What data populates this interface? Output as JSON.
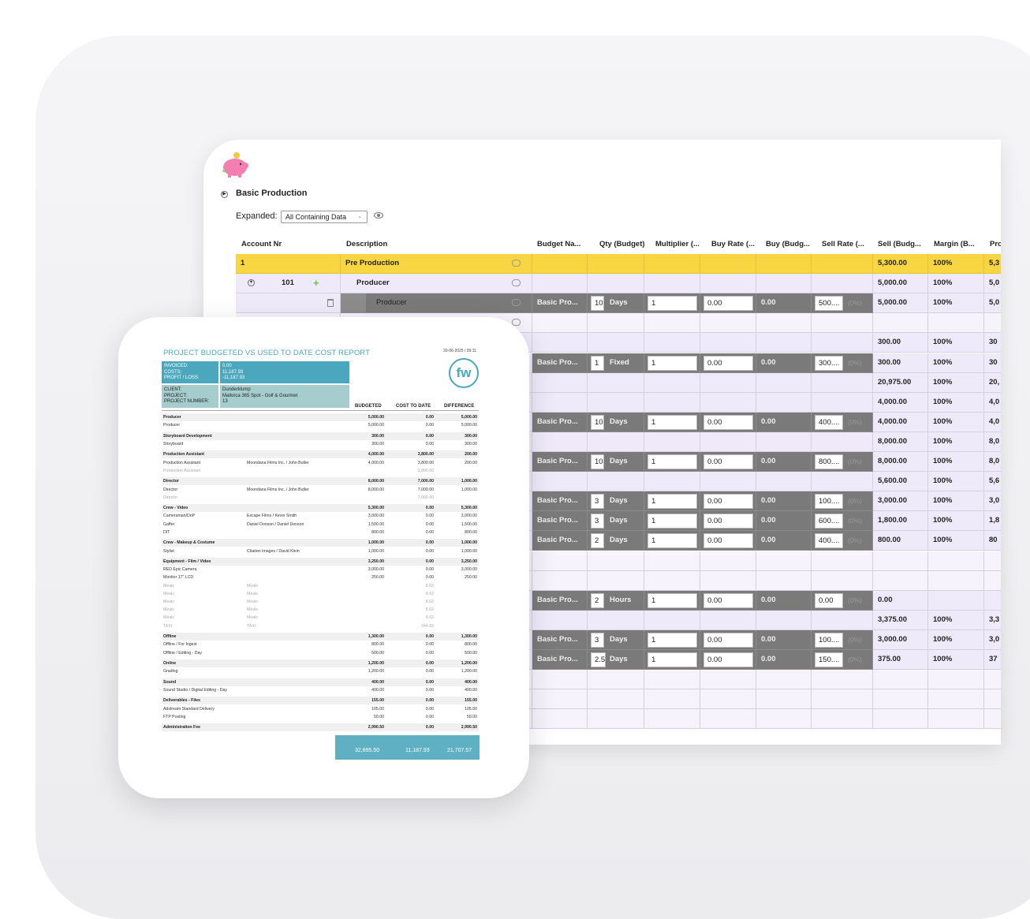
{
  "sheet": {
    "group_title": "Basic Production",
    "expanded_label": "Expanded:",
    "expanded_value": "All Containing Data",
    "columns": [
      "Account Nr",
      "Description",
      "Budget Na...",
      "Qty (Budget)",
      "Multiplier (...",
      "Buy Rate (...",
      "Buy (Budg...",
      "Sell Rate (...",
      "Sell (Budg...",
      "Margin (B...",
      "Pro"
    ],
    "rows": [
      {
        "kind": "yellow",
        "account": "1",
        "description": "Pre Production",
        "sell": "5,300.00",
        "margin": "100%",
        "pro": "5,3"
      },
      {
        "kind": "lav",
        "account": "101",
        "description": "Producer",
        "sell": "5,000.00",
        "margin": "100%",
        "pro": "5,0"
      },
      {
        "kind": "item",
        "description": "Producer",
        "budget": "Basic Pro...",
        "qty": "10",
        "unit": "Days",
        "mult": "1",
        "buy_rate": "0.00",
        "buy": "0.00",
        "sell_rate": "500....",
        "pct": "(0%)",
        "sell": "5,000.00",
        "margin": "100%",
        "pro": "5,0"
      },
      {
        "kind": "light"
      },
      {
        "kind": "lav",
        "sell": "300.00",
        "margin": "100%",
        "pro": "30"
      },
      {
        "kind": "item",
        "budget": "Basic Pro...",
        "qty": "1",
        "unit": "Fixed",
        "mult": "1",
        "buy_rate": "0.00",
        "buy": "0.00",
        "sell_rate": "300....",
        "pct": "(0%)",
        "sell": "300.00",
        "margin": "100%",
        "pro": "30"
      },
      {
        "kind": "lav",
        "sell": "20,975.00",
        "margin": "100%",
        "pro": "20,"
      },
      {
        "kind": "lav",
        "sell": "4,000.00",
        "margin": "100%",
        "pro": "4,0"
      },
      {
        "kind": "item",
        "budget": "Basic Pro...",
        "qty": "10",
        "unit": "Days",
        "mult": "1",
        "buy_rate": "0.00",
        "buy": "0.00",
        "sell_rate": "400....",
        "pct": "(0%)",
        "sell": "4,000.00",
        "margin": "100%",
        "pro": "4,0"
      },
      {
        "kind": "lav",
        "sell": "8,000.00",
        "margin": "100%",
        "pro": "8,0"
      },
      {
        "kind": "item",
        "budget": "Basic Pro...",
        "qty": "10",
        "unit": "Days",
        "mult": "1",
        "buy_rate": "0.00",
        "buy": "0.00",
        "sell_rate": "800....",
        "pct": "(0%)",
        "sell": "8,000.00",
        "margin": "100%",
        "pro": "8,0"
      },
      {
        "kind": "lav",
        "sell": "5,600.00",
        "margin": "100%",
        "pro": "5,6"
      },
      {
        "kind": "item",
        "budget": "Basic Pro...",
        "qty": "3",
        "unit": "Days",
        "mult": "1",
        "buy_rate": "0.00",
        "buy": "0.00",
        "sell_rate": "100....",
        "pct": "(0%)",
        "sell": "3,000.00",
        "margin": "100%",
        "pro": "3,0"
      },
      {
        "kind": "item",
        "budget": "Basic Pro...",
        "qty": "3",
        "unit": "Days",
        "mult": "1",
        "buy_rate": "0.00",
        "buy": "0.00",
        "sell_rate": "600....",
        "pct": "(0%)",
        "sell": "1,800.00",
        "margin": "100%",
        "pro": "1,8"
      },
      {
        "kind": "item",
        "budget": "Basic Pro...",
        "qty": "2",
        "unit": "Days",
        "mult": "1",
        "buy_rate": "0.00",
        "buy": "0.00",
        "sell_rate": "400....",
        "pct": "(0%)",
        "sell": "800.00",
        "margin": "100%",
        "pro": "80"
      },
      {
        "kind": "light"
      },
      {
        "kind": "light"
      },
      {
        "kind": "item",
        "budget": "Basic Pro...",
        "qty": "2",
        "unit": "Hours",
        "mult": "1",
        "buy_rate": "0.00",
        "buy": "0.00",
        "sell_rate": "0.00",
        "pct": "(0%)",
        "sell": "0.00",
        "margin": "",
        "pro": ""
      },
      {
        "kind": "lav",
        "sell": "3,375.00",
        "margin": "100%",
        "pro": "3,3"
      },
      {
        "kind": "item",
        "budget": "Basic Pro...",
        "qty": "3",
        "unit": "Days",
        "mult": "1",
        "buy_rate": "0.00",
        "buy": "0.00",
        "sell_rate": "100....",
        "pct": "(0%)",
        "sell": "3,000.00",
        "margin": "100%",
        "pro": "3,0"
      },
      {
        "kind": "item",
        "budget": "Basic Pro...",
        "qty": "2.5",
        "unit": "Days",
        "mult": "1",
        "buy_rate": "0.00",
        "buy": "0.00",
        "sell_rate": "150....",
        "pct": "(0%)",
        "sell": "375.00",
        "margin": "100%",
        "pro": "37"
      },
      {
        "kind": "light"
      },
      {
        "kind": "light"
      },
      {
        "kind": "light"
      }
    ]
  },
  "report": {
    "title": "PROJECT BUDGETED VS USED TO DATE COST REPORT",
    "date": "20-06-2025 / 09:11",
    "logo_text": "fw",
    "summary_labels": "INVOICED:\nCOSTS:\nPROFIT / LOSS:",
    "summary_values": "0.00\n11,187.93\n-11,187.93",
    "client_labels": "CLIENT:\nPROJECT:\nPROJECT NUMBER:",
    "client_values": "Dunderklump\nMallorca 365 Spot - Golf & Gourmet\n13",
    "col_budgeted": "BUDGETED",
    "col_cost": "COST TO DATE",
    "col_diff": "DIFFERENCE",
    "lines": [
      {
        "t": "grp",
        "name": "Producer",
        "vendor": "",
        "b": "5,000.00",
        "c": "0.00",
        "d": "5,000.00"
      },
      {
        "t": "row",
        "name": "Producer",
        "vendor": "",
        "b": "5,000.00",
        "c": "0.00",
        "d": "5,000.00"
      },
      {
        "t": "gap"
      },
      {
        "t": "grp",
        "name": "Storyboard Development",
        "vendor": "",
        "b": "300.00",
        "c": "0.00",
        "d": "300.00"
      },
      {
        "t": "row",
        "name": "Storyboard",
        "vendor": "",
        "b": "300.00",
        "c": "0.00",
        "d": "300.00"
      },
      {
        "t": "gap"
      },
      {
        "t": "grp",
        "name": "Production Assistant",
        "vendor": "",
        "b": "4,000.00",
        "c": "3,800.00",
        "d": "200.00"
      },
      {
        "t": "row",
        "name": "Production Assistant",
        "vendor": "Moondana Films Inc. / John Butler",
        "b": "4,000.00",
        "c": "3,800.00",
        "d": "200.00"
      },
      {
        "t": "muted",
        "name": "Production Assistant",
        "vendor": "",
        "b": "",
        "c": "3,800.00",
        "d": ""
      },
      {
        "t": "gap"
      },
      {
        "t": "grp",
        "name": "Director",
        "vendor": "",
        "b": "8,000.00",
        "c": "7,000.00",
        "d": "1,000.00"
      },
      {
        "t": "row",
        "name": "Director",
        "vendor": "Moondana Films Inc. / John Butler",
        "b": "8,000.00",
        "c": "7,000.00",
        "d": "1,000.00"
      },
      {
        "t": "muted",
        "name": "Director",
        "vendor": "",
        "b": "",
        "c": "7,000.00",
        "d": ""
      },
      {
        "t": "gap"
      },
      {
        "t": "grp",
        "name": "Crew - Video",
        "vendor": "",
        "b": "5,300.00",
        "c": "0.00",
        "d": "5,300.00"
      },
      {
        "t": "row",
        "name": "Cameraman/DoP",
        "vendor": "Escape Films / Kevin Smith",
        "b": "3,000.00",
        "c": "0.00",
        "d": "3,000.00"
      },
      {
        "t": "row",
        "name": "Gaffer",
        "vendor": "Daniel Donson / Daniel Donson",
        "b": "1,500.00",
        "c": "0.00",
        "d": "1,500.00"
      },
      {
        "t": "row",
        "name": "DIT",
        "vendor": "",
        "b": "800.00",
        "c": "0.00",
        "d": "800.00"
      },
      {
        "t": "gap"
      },
      {
        "t": "grp",
        "name": "Crew - Makeup & Costume",
        "vendor": "",
        "b": "1,000.00",
        "c": "0.00",
        "d": "1,000.00"
      },
      {
        "t": "row",
        "name": "Stylist",
        "vendor": "Citation Images / David Klein",
        "b": "1,000.00",
        "c": "0.00",
        "d": "1,000.00"
      },
      {
        "t": "gap"
      },
      {
        "t": "grp",
        "name": "Equipment - Film / Video",
        "vendor": "",
        "b": "3,250.00",
        "c": "0.00",
        "d": "3,250.00"
      },
      {
        "t": "row",
        "name": "RED Epic Camera",
        "vendor": "",
        "b": "3,000.00",
        "c": "0.00",
        "d": "3,000.00"
      },
      {
        "t": "row",
        "name": "Monitor 17\" LCD",
        "vendor": "",
        "b": "250.00",
        "c": "0.00",
        "d": "250.00"
      },
      {
        "t": "muted",
        "name": "Meals",
        "vendor": "Meals",
        "b": "",
        "c": "8.62",
        "d": ""
      },
      {
        "t": "muted",
        "name": "Meals",
        "vendor": "Meals",
        "b": "",
        "c": "8.62",
        "d": ""
      },
      {
        "t": "muted",
        "name": "Meals",
        "vendor": "Meals",
        "b": "",
        "c": "8.62",
        "d": ""
      },
      {
        "t": "muted",
        "name": "Meals",
        "vendor": "Meals",
        "b": "",
        "c": "8.62",
        "d": ""
      },
      {
        "t": "muted",
        "name": "Meals",
        "vendor": "Meals",
        "b": "",
        "c": "8.62",
        "d": ""
      },
      {
        "t": "muted",
        "name": "TAXI",
        "vendor": "TAXI",
        "b": "",
        "c": "344.83",
        "d": ""
      },
      {
        "t": "gap"
      },
      {
        "t": "grp",
        "name": "Offline",
        "vendor": "",
        "b": "1,300.00",
        "c": "0.00",
        "d": "1,300.00"
      },
      {
        "t": "row",
        "name": "Offline / For Ingest",
        "vendor": "",
        "b": "800.00",
        "c": "0.00",
        "d": "800.00"
      },
      {
        "t": "row",
        "name": "Offline / Editing - Day",
        "vendor": "",
        "b": "500.00",
        "c": "0.00",
        "d": "500.00"
      },
      {
        "t": "gap"
      },
      {
        "t": "grp",
        "name": "Online",
        "vendor": "",
        "b": "1,200.00",
        "c": "0.00",
        "d": "1,200.00"
      },
      {
        "t": "row",
        "name": "Grading",
        "vendor": "",
        "b": "1,200.00",
        "c": "0.00",
        "d": "1,200.00"
      },
      {
        "t": "gap"
      },
      {
        "t": "grp",
        "name": "Sound",
        "vendor": "",
        "b": "400.00",
        "c": "0.00",
        "d": "400.00"
      },
      {
        "t": "row",
        "name": "Sound Studio / Digital Editing - Day",
        "vendor": "",
        "b": "400.00",
        "c": "0.00",
        "d": "400.00"
      },
      {
        "t": "gap"
      },
      {
        "t": "grp",
        "name": "Deliverables - Files",
        "vendor": "",
        "b": "155.00",
        "c": "0.00",
        "d": "155.00"
      },
      {
        "t": "row",
        "name": "Adstream Standard Delivery",
        "vendor": "",
        "b": "105.00",
        "c": "0.00",
        "d": "105.00"
      },
      {
        "t": "row",
        "name": "FTP Posting",
        "vendor": "",
        "b": "50.00",
        "c": "0.00",
        "d": "50.00"
      },
      {
        "t": "gap"
      },
      {
        "t": "grp",
        "name": "Administration Fee",
        "vendor": "",
        "b": "2,990.50",
        "c": "0.00",
        "d": "2,990.50"
      }
    ],
    "total_budgeted": "32,895.50",
    "total_cost": "11,187.93",
    "total_diff": "21,707.57"
  },
  "colors": {
    "yellow": "#f7d642",
    "lavender": "#efeaf9",
    "dark_row": "#7a7a7a",
    "report_accent": "#4aa7bd"
  }
}
